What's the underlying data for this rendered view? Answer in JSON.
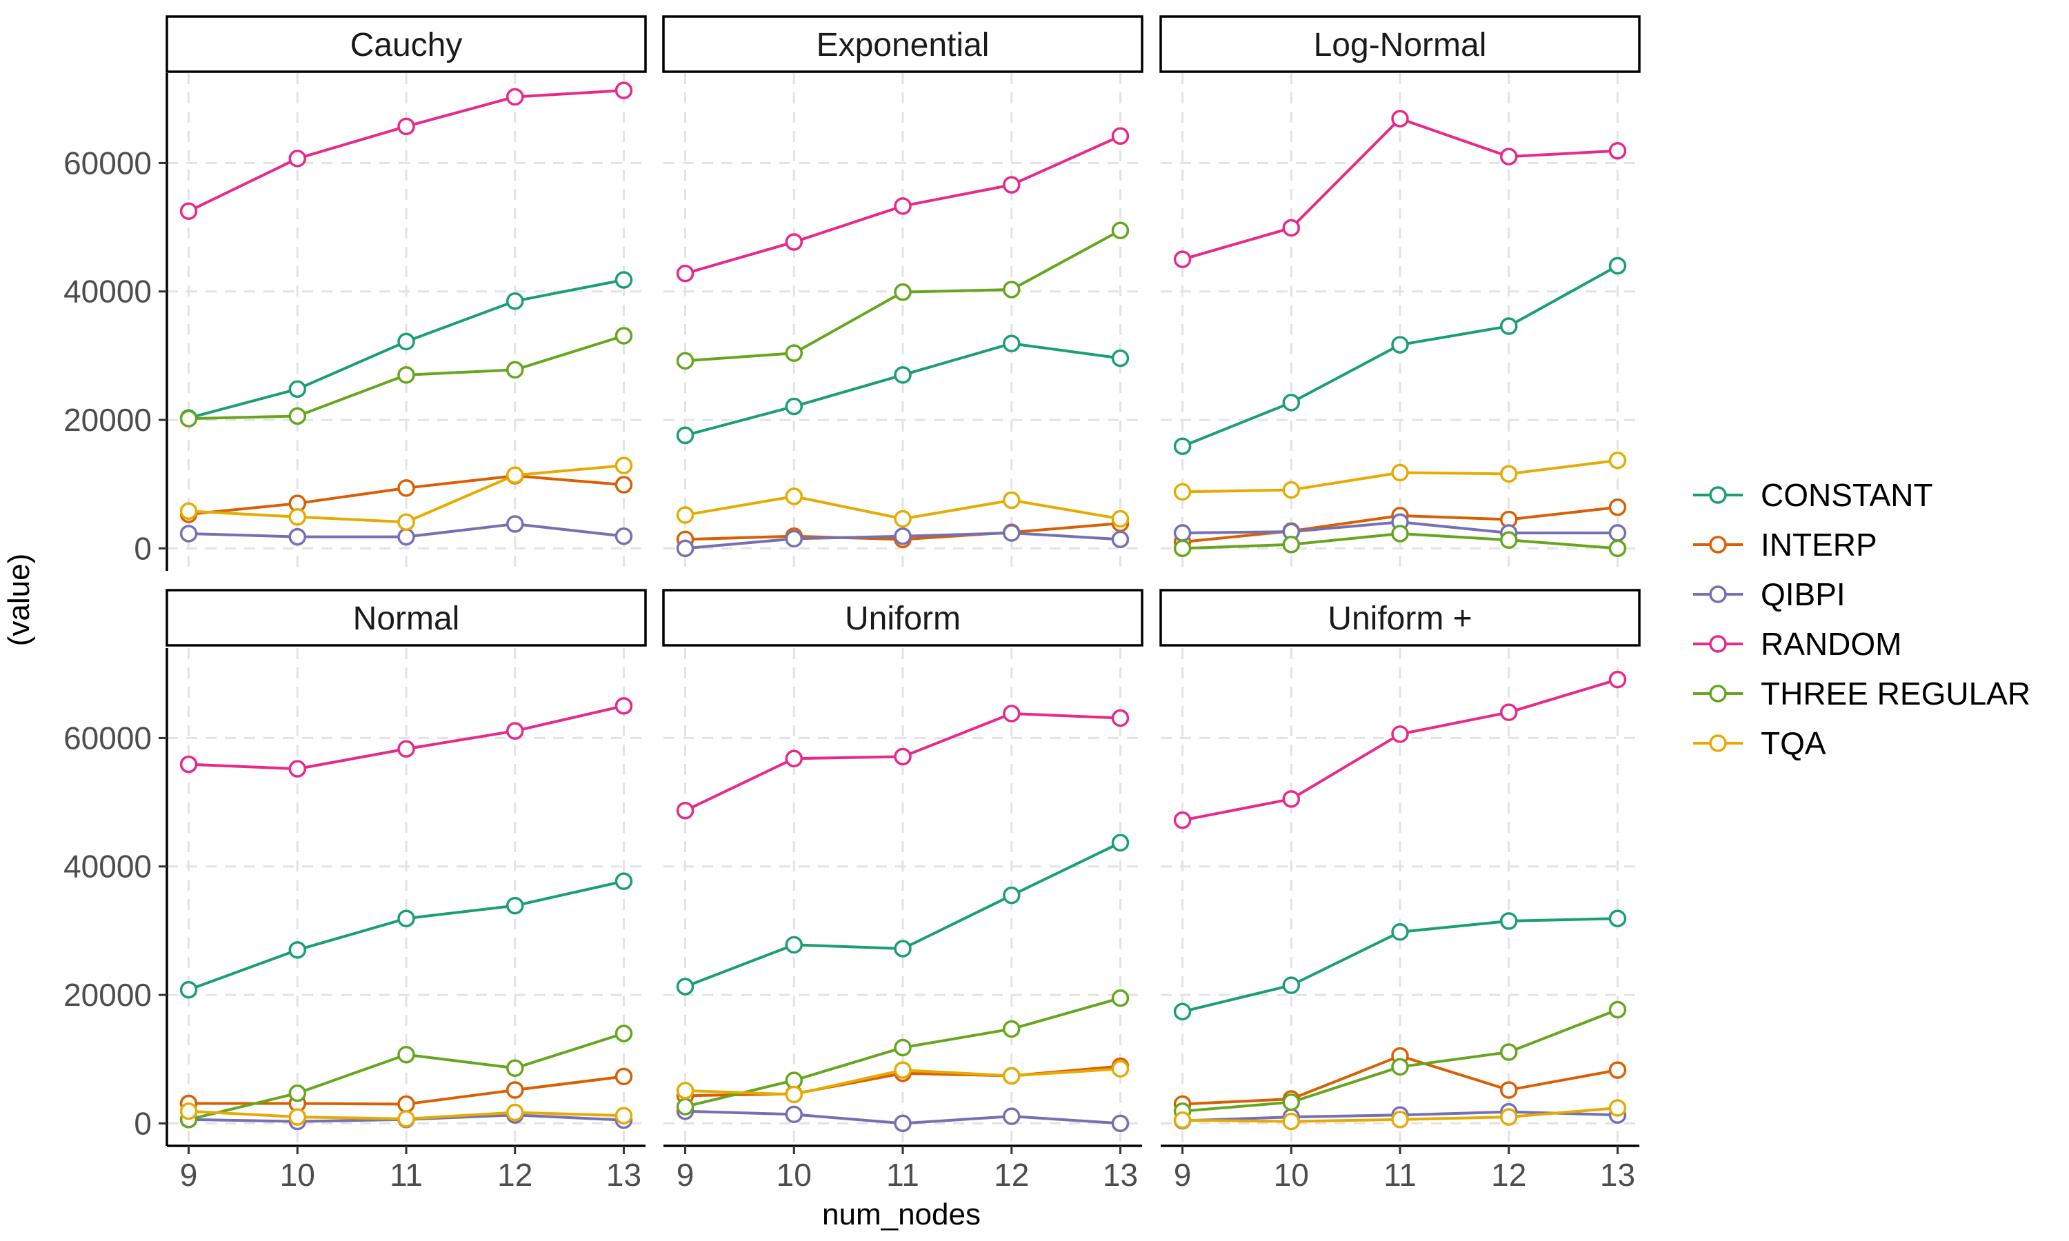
{
  "chart_data": {
    "type": "line",
    "title": "",
    "xlabel": "num_nodes",
    "ylabel": "(value)",
    "x": [
      9,
      10,
      11,
      12,
      13
    ],
    "ylim": [
      -3500,
      74000
    ],
    "y_ticks": [
      0,
      20000,
      40000,
      60000
    ],
    "y_tick_labels": [
      "0",
      "20000",
      "40000",
      "60000"
    ],
    "x_tick_labels": [
      "9",
      "10",
      "11",
      "12",
      "13"
    ],
    "grid": true,
    "legend_position": "right",
    "series_colors": {
      "CONSTANT": "#1b9e77",
      "INTERP": "#d95f02",
      "QIBPI": "#7570b3",
      "RANDOM": "#e7298a",
      "THREE REGULAR": "#66a61e",
      "TQA": "#e6ab02"
    },
    "legend": [
      "CONSTANT",
      "INTERP",
      "QIBPI",
      "RANDOM",
      "THREE REGULAR",
      "TQA"
    ],
    "panels": [
      {
        "name": "Cauchy",
        "series": [
          {
            "name": "CONSTANT",
            "values": [
              20300,
              24800,
              32200,
              38500,
              41800
            ]
          },
          {
            "name": "INTERP",
            "values": [
              5300,
              7000,
              9400,
              11300,
              9900
            ]
          },
          {
            "name": "QIBPI",
            "values": [
              2300,
              1800,
              1800,
              3800,
              1900
            ]
          },
          {
            "name": "RANDOM",
            "values": [
              52500,
              60700,
              65700,
              70300,
              71300
            ]
          },
          {
            "name": "THREE REGULAR",
            "values": [
              20200,
              20600,
              27000,
              27800,
              33100
            ]
          },
          {
            "name": "TQA",
            "values": [
              5800,
              4900,
              4100,
              11400,
              12900
            ]
          }
        ]
      },
      {
        "name": "Exponential",
        "series": [
          {
            "name": "CONSTANT",
            "values": [
              17600,
              22100,
              27000,
              31900,
              29600
            ]
          },
          {
            "name": "INTERP",
            "values": [
              1400,
              1900,
              1400,
              2500,
              3900
            ]
          },
          {
            "name": "QIBPI",
            "values": [
              0,
              1500,
              1900,
              2400,
              1400
            ]
          },
          {
            "name": "RANDOM",
            "values": [
              42800,
              47700,
              53300,
              56600,
              64200
            ]
          },
          {
            "name": "THREE REGULAR",
            "values": [
              29200,
              30400,
              39900,
              40300,
              49500
            ]
          },
          {
            "name": "TQA",
            "values": [
              5200,
              8100,
              4600,
              7500,
              4600
            ]
          }
        ]
      },
      {
        "name": "Log-Normal",
        "series": [
          {
            "name": "CONSTANT",
            "values": [
              15900,
              22700,
              31700,
              34600,
              44000
            ]
          },
          {
            "name": "INTERP",
            "values": [
              1000,
              2700,
              5100,
              4500,
              6400
            ]
          },
          {
            "name": "QIBPI",
            "values": [
              2400,
              2600,
              4100,
              2400,
              2400
            ]
          },
          {
            "name": "RANDOM",
            "values": [
              45000,
              49900,
              66900,
              61000,
              61900
            ]
          },
          {
            "name": "THREE REGULAR",
            "values": [
              0,
              600,
              2300,
              1300,
              0
            ]
          },
          {
            "name": "TQA",
            "values": [
              8800,
              9100,
              11800,
              11600,
              13700
            ]
          }
        ]
      },
      {
        "name": "Normal",
        "series": [
          {
            "name": "CONSTANT",
            "values": [
              20800,
              27000,
              31900,
              33900,
              37700
            ]
          },
          {
            "name": "INTERP",
            "values": [
              3100,
              3100,
              3000,
              5200,
              7300
            ]
          },
          {
            "name": "QIBPI",
            "values": [
              600,
              300,
              600,
              1300,
              500
            ]
          },
          {
            "name": "RANDOM",
            "values": [
              55900,
              55200,
              58300,
              61100,
              65000
            ]
          },
          {
            "name": "THREE REGULAR",
            "values": [
              600,
              4700,
              10700,
              8600,
              14000
            ]
          },
          {
            "name": "TQA",
            "values": [
              1900,
              1000,
              700,
              1700,
              1200
            ]
          }
        ]
      },
      {
        "name": "Uniform",
        "series": [
          {
            "name": "CONSTANT",
            "values": [
              21300,
              27800,
              27200,
              35500,
              43700
            ]
          },
          {
            "name": "INTERP",
            "values": [
              4300,
              4600,
              7800,
              7400,
              8900
            ]
          },
          {
            "name": "QIBPI",
            "values": [
              1900,
              1400,
              0,
              1100,
              0
            ]
          },
          {
            "name": "RANDOM",
            "values": [
              48700,
              56800,
              57100,
              63800,
              63100
            ]
          },
          {
            "name": "THREE REGULAR",
            "values": [
              2600,
              6700,
              11800,
              14700,
              19500
            ]
          },
          {
            "name": "TQA",
            "values": [
              5100,
              4500,
              8300,
              7400,
              8500
            ]
          }
        ]
      },
      {
        "name": "Uniform +",
        "series": [
          {
            "name": "CONSTANT",
            "values": [
              17400,
              21500,
              29800,
              31500,
              31900
            ]
          },
          {
            "name": "INTERP",
            "values": [
              3000,
              3800,
              10500,
              5200,
              8300
            ]
          },
          {
            "name": "QIBPI",
            "values": [
              400,
              1000,
              1300,
              1800,
              1300
            ]
          },
          {
            "name": "RANDOM",
            "values": [
              47200,
              50500,
              60600,
              64000,
              69100
            ]
          },
          {
            "name": "THREE REGULAR",
            "values": [
              1900,
              3300,
              8800,
              11100,
              17700
            ]
          },
          {
            "name": "TQA",
            "values": [
              500,
              300,
              600,
              1000,
              2400
            ]
          }
        ]
      }
    ]
  }
}
